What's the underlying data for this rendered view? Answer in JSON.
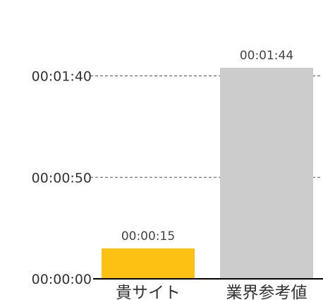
{
  "chart_data": {
    "type": "bar",
    "title": "",
    "xlabel": "",
    "ylabel": "",
    "categories": [
      "貴サイト",
      "業界参考値"
    ],
    "values": [
      15,
      104
    ],
    "value_labels": [
      "00:00:15",
      "00:01:44"
    ],
    "ylim": [
      0,
      100
    ],
    "yticks": [
      0,
      50,
      100
    ],
    "ytick_labels": [
      "00:00:00",
      "00:00:50",
      "00:01:40"
    ],
    "grid": true,
    "legend": "none",
    "colors": [
      "#fdc113",
      "#cccccc"
    ],
    "grid_color": "#555555",
    "axis_color": "#000000"
  }
}
